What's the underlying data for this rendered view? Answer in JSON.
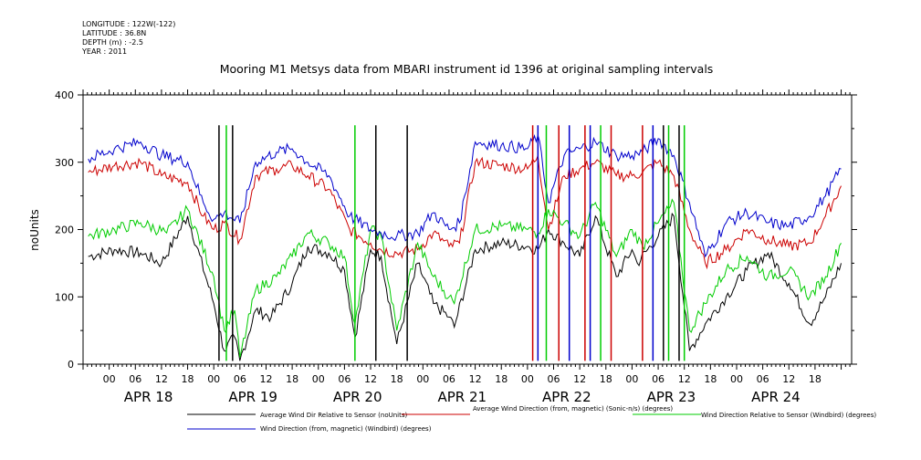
{
  "meta": {
    "longitude": "LONGITUDE : 122W(-122)",
    "latitude": "LATITUDE : 36.8N",
    "depth": "DEPTH (m) : -2.5",
    "year": "YEAR : 2011"
  },
  "chart_data": {
    "type": "line",
    "title": "Mooring M1 Metsys data from MBARI instrument id 1396 at original sampling intervals",
    "ylabel": "noUnits",
    "xlabel": "",
    "xlim": [
      -0.25,
      7.1
    ],
    "ylim": [
      0,
      400
    ],
    "yticks": [
      0,
      100,
      200,
      300,
      400
    ],
    "xtick_labels": [
      "00",
      "06",
      "12",
      "18",
      "00",
      "06",
      "12",
      "18",
      "00",
      "06",
      "12",
      "18",
      "00",
      "06",
      "12",
      "18",
      "00",
      "06",
      "12",
      "18",
      "00",
      "06",
      "12",
      "18",
      "00",
      "06",
      "12",
      "18"
    ],
    "day_labels": [
      "APR 18",
      "APR 19",
      "APR 20",
      "APR 21",
      "APR 22",
      "APR 23",
      "APR 24"
    ],
    "x_units": "days since APR 18 00:00 (2011)",
    "series": [
      {
        "name": "Average Wind Dir Relative to Sensor (noUnits)",
        "color": "#000000",
        "x": [
          -0.2,
          0.05,
          0.3,
          0.5,
          0.75,
          1.0,
          1.1,
          1.2,
          1.25,
          1.4,
          1.55,
          1.75,
          1.9,
          2.1,
          2.25,
          2.35,
          2.5,
          2.6,
          2.75,
          2.95,
          3.1,
          3.25,
          3.3,
          3.5,
          3.75,
          4.0,
          4.1,
          4.2,
          4.35,
          4.5,
          4.65,
          4.85,
          5.0,
          5.05,
          5.25,
          5.4,
          5.55,
          5.7,
          5.9,
          6.1,
          6.3,
          6.5,
          6.7,
          6.85,
          7.0
        ],
        "y": [
          160,
          170,
          165,
          150,
          220,
          90,
          20,
          40,
          5,
          80,
          70,
          120,
          175,
          165,
          140,
          40,
          170,
          160,
          30,
          150,
          90,
          70,
          55,
          170,
          180,
          175,
          170,
          200,
          180,
          160,
          220,
          130,
          170,
          150,
          190,
          220,
          20,
          60,
          100,
          140,
          165,
          120,
          60,
          100,
          150
        ]
      },
      {
        "name": "Average Wind Direction (from, magnetic) (Sonic-n/s) (degrees)",
        "color": "#cc0000",
        "x": [
          -0.2,
          0.05,
          0.3,
          0.5,
          0.75,
          0.9,
          1.0,
          1.1,
          1.25,
          1.4,
          1.6,
          1.75,
          1.9,
          2.1,
          2.3,
          2.5,
          2.6,
          2.75,
          2.95,
          3.1,
          3.25,
          3.35,
          3.5,
          3.75,
          4.0,
          4.1,
          4.2,
          4.35,
          4.5,
          4.65,
          4.85,
          5.0,
          5.1,
          5.25,
          5.4,
          5.55,
          5.7,
          5.9,
          6.1,
          6.3,
          6.5,
          6.7,
          6.85,
          7.0
        ],
        "y": [
          285,
          295,
          300,
          280,
          270,
          220,
          200,
          210,
          185,
          280,
          290,
          295,
          280,
          260,
          200,
          180,
          170,
          165,
          170,
          195,
          175,
          180,
          300,
          295,
          290,
          310,
          200,
          280,
          290,
          300,
          280,
          280,
          285,
          300,
          280,
          200,
          150,
          170,
          200,
          185,
          175,
          180,
          220,
          265
        ]
      },
      {
        "name": "Wind Direction Relative to Sensor (Windbird) (degrees)",
        "color": "#00cc00",
        "x": [
          -0.2,
          0.05,
          0.3,
          0.55,
          0.75,
          1.0,
          1.1,
          1.2,
          1.25,
          1.4,
          1.6,
          1.75,
          1.9,
          2.1,
          2.25,
          2.35,
          2.5,
          2.6,
          2.75,
          2.95,
          3.1,
          3.25,
          3.3,
          3.5,
          3.75,
          4.0,
          4.1,
          4.2,
          4.35,
          4.5,
          4.65,
          4.85,
          5.0,
          5.1,
          5.25,
          5.4,
          5.55,
          5.7,
          5.9,
          6.1,
          6.3,
          6.5,
          6.7,
          6.85,
          7.0
        ],
        "y": [
          190,
          200,
          210,
          195,
          230,
          130,
          50,
          80,
          10,
          110,
          130,
          160,
          195,
          180,
          160,
          60,
          200,
          190,
          50,
          180,
          130,
          100,
          90,
          200,
          205,
          200,
          195,
          230,
          210,
          190,
          240,
          160,
          200,
          175,
          210,
          240,
          50,
          90,
          140,
          160,
          130,
          140,
          100,
          130,
          180
        ]
      },
      {
        "name": "Wind Direction (from, magnetic) (Windbird) (degrees)",
        "color": "#0000cc",
        "x": [
          -0.2,
          0.05,
          0.3,
          0.5,
          0.75,
          0.9,
          1.0,
          1.1,
          1.25,
          1.4,
          1.6,
          1.75,
          1.9,
          2.1,
          2.3,
          2.5,
          2.6,
          2.75,
          2.95,
          3.1,
          3.25,
          3.35,
          3.5,
          3.75,
          4.0,
          4.1,
          4.2,
          4.35,
          4.5,
          4.65,
          4.85,
          5.0,
          5.1,
          5.25,
          5.4,
          5.55,
          5.7,
          5.9,
          6.1,
          6.3,
          6.5,
          6.7,
          6.85,
          7.0
        ],
        "y": [
          305,
          320,
          330,
          310,
          300,
          240,
          215,
          225,
          210,
          300,
          315,
          320,
          300,
          280,
          220,
          200,
          195,
          190,
          195,
          225,
          200,
          210,
          330,
          325,
          320,
          340,
          240,
          310,
          320,
          330,
          310,
          310,
          315,
          335,
          310,
          240,
          160,
          210,
          225,
          210,
          205,
          220,
          250,
          290
        ]
      }
    ],
    "spikes": [
      {
        "x": 1.05,
        "series": 0
      },
      {
        "x": 1.12,
        "series": 2
      },
      {
        "x": 1.18,
        "series": 0
      },
      {
        "x": 2.35,
        "series": 2
      },
      {
        "x": 2.55,
        "series": 0
      },
      {
        "x": 2.85,
        "series": 0
      },
      {
        "x": 4.05,
        "series": 1
      },
      {
        "x": 4.1,
        "series": 3
      },
      {
        "x": 4.18,
        "series": 2
      },
      {
        "x": 4.3,
        "series": 1
      },
      {
        "x": 4.4,
        "series": 3
      },
      {
        "x": 4.55,
        "series": 1
      },
      {
        "x": 4.6,
        "series": 3
      },
      {
        "x": 4.7,
        "series": 2
      },
      {
        "x": 4.8,
        "series": 1
      },
      {
        "x": 5.1,
        "series": 1
      },
      {
        "x": 5.2,
        "series": 3
      },
      {
        "x": 5.3,
        "series": 0
      },
      {
        "x": 5.35,
        "series": 2
      },
      {
        "x": 5.45,
        "series": 0
      },
      {
        "x": 5.5,
        "series": 2
      }
    ],
    "legend_placement": "bottom",
    "grid": false
  }
}
